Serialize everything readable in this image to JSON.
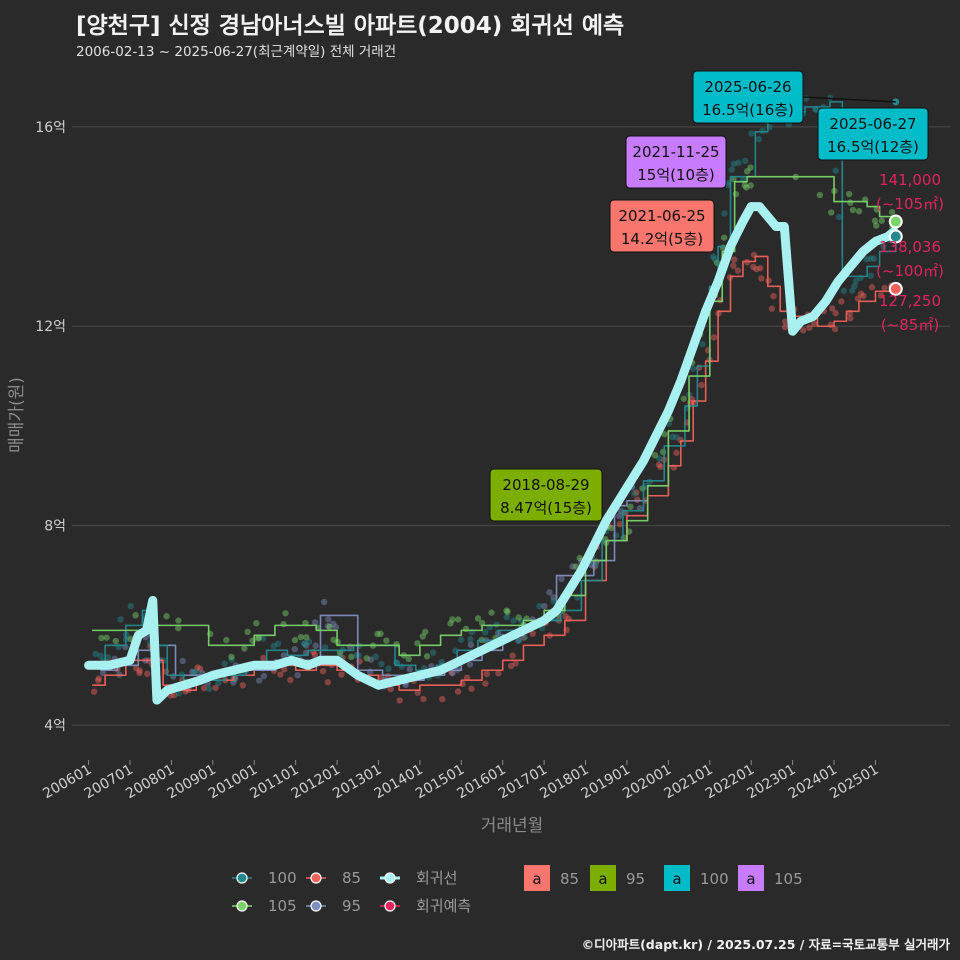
{
  "title": "[양천구] 신정 경남아너스빌 아파트(2004) 회귀선 예측",
  "subtitle": "2006-02-13 ~ 2025-06-27(최근계약일) 전체 거래건",
  "caption": "©디아파트(dapt.kr) / 2025.07.25 / 자료=국토교통부 실거래가",
  "colors": {
    "background": "#2a2a2b",
    "grid": "#4a4a4a",
    "s85": "#f0625a",
    "s95": "#7f8fbf",
    "s100": "#24898f",
    "s105": "#7ad46a",
    "reg": "#a9f0f0",
    "pred": "#e0245e"
  },
  "chart_data": {
    "type": "line",
    "title": "[양천구] 신정 경남아너스빌 아파트(2004) 회귀선 예측",
    "xlabel": "거래년월",
    "ylabel": "매매가(원)",
    "xlim": [
      2005.6,
      2026.8
    ],
    "ylim": [
      3.3,
      17.3
    ],
    "x_ticks": [
      2006,
      2007,
      2008,
      2009,
      2010,
      2011,
      2012,
      2013,
      2014,
      2015,
      2016,
      2017,
      2018,
      2019,
      2020,
      2021,
      2022,
      2023,
      2024,
      2025
    ],
    "x_tick_labels": [
      "200601",
      "200701",
      "200801",
      "200901",
      "201001",
      "201101",
      "201201",
      "201301",
      "201401",
      "201501",
      "201601",
      "201701",
      "201801",
      "201901",
      "202001",
      "202101",
      "202201",
      "202301",
      "202401",
      "202501"
    ],
    "y_ticks": [
      4,
      8,
      12,
      16
    ],
    "y_tick_labels": [
      "4억",
      "8억",
      "12억",
      "16억"
    ],
    "series": [
      {
        "name": "85",
        "color_key": "s85",
        "x": [
          2006.1,
          2006.4,
          2006.9,
          2007.4,
          2007.5,
          2007.8,
          2008.2,
          2008.6,
          2009.0,
          2009.5,
          2010.0,
          2010.5,
          2011.0,
          2011.5,
          2012.0,
          2012.5,
          2013.0,
          2013.5,
          2014.0,
          2014.5,
          2015.0,
          2015.5,
          2016.0,
          2016.5,
          2017.0,
          2017.5,
          2018.0,
          2018.5,
          2019.0,
          2019.5,
          2020.0,
          2020.3,
          2020.6,
          2020.9,
          2021.2,
          2021.5,
          2021.8,
          2022.1,
          2022.4,
          2022.7,
          2023.0,
          2023.3,
          2023.6,
          2024.0,
          2024.3,
          2024.6,
          2025.0,
          2025.4
        ],
        "y": [
          4.8,
          5.0,
          5.3,
          5.3,
          5.3,
          4.8,
          4.7,
          4.9,
          4.9,
          5.0,
          5.1,
          5.2,
          5.1,
          5.2,
          5.1,
          5.0,
          4.8,
          4.7,
          4.8,
          4.8,
          4.9,
          5.1,
          5.3,
          5.6,
          5.8,
          6.1,
          6.9,
          7.7,
          8.2,
          8.6,
          9.2,
          9.7,
          10.5,
          11.3,
          12.3,
          13.0,
          13.3,
          13.4,
          12.8,
          12.3,
          12.2,
          12.2,
          12.0,
          12.1,
          12.3,
          12.5,
          12.7,
          12.75
        ]
      },
      {
        "name": "95",
        "color_key": "s95",
        "x": [
          2006.3,
          2006.7,
          2007.2,
          2007.6,
          2008.1,
          2008.6,
          2009.2,
          2009.8,
          2010.5,
          2011.0,
          2011.3,
          2011.6,
          2011.9,
          2012.5,
          2013.1,
          2013.6,
          2014.1,
          2014.6,
          2015.0,
          2015.5,
          2016.0,
          2016.5,
          2017.0,
          2017.3,
          2017.7,
          2018.2,
          2018.7,
          2019.0,
          2019.5
        ],
        "y": [
          5.1,
          5.2,
          5.5,
          5.6,
          5.0,
          5.0,
          5.1,
          5.1,
          5.3,
          5.3,
          5.3,
          6.2,
          6.2,
          5.1,
          5.0,
          4.9,
          5.0,
          5.1,
          5.3,
          5.5,
          5.8,
          6.0,
          6.2,
          7.0,
          7.0,
          7.3,
          8.4,
          8.5,
          8.5
        ]
      },
      {
        "name": "100",
        "color_key": "s100",
        "x": [
          2006.1,
          2006.4,
          2006.9,
          2007.3,
          2007.6,
          2007.9,
          2008.3,
          2008.8,
          2009.3,
          2009.8,
          2010.3,
          2010.8,
          2011.3,
          2011.9,
          2012.4,
          2012.9,
          2013.4,
          2013.9,
          2014.4,
          2014.9,
          2015.4,
          2015.9,
          2016.4,
          2016.9,
          2017.4,
          2017.9,
          2018.4,
          2018.9,
          2019.4,
          2019.9,
          2020.4,
          2020.7,
          2021.0,
          2021.2,
          2021.5,
          2021.8,
          2022.1,
          2022.4,
          2022.7,
          2023.0,
          2023.3,
          2023.6,
          2023.9,
          2024.2,
          2024.5,
          2024.8,
          2025.1,
          2025.49
        ],
        "y": [
          5.2,
          5.6,
          6.0,
          6.3,
          5.6,
          5.0,
          4.9,
          4.9,
          5.0,
          5.2,
          5.5,
          5.4,
          5.5,
          5.5,
          5.6,
          5.6,
          5.2,
          5.1,
          5.2,
          5.5,
          5.7,
          5.9,
          6.0,
          6.1,
          6.3,
          6.9,
          7.7,
          8.3,
          8.9,
          9.6,
          10.4,
          11.2,
          12.8,
          13.6,
          15.0,
          15.0,
          15.9,
          16.1,
          16.2,
          16.3,
          16.4,
          16.4,
          16.5,
          13.0,
          13.0,
          13.2,
          13.5,
          13.8
        ]
      },
      {
        "name": "105",
        "color_key": "s105",
        "x": [
          2006.1,
          2007.0,
          2007.5,
          2008.9,
          2009.5,
          2010.0,
          2010.5,
          2011.0,
          2011.5,
          2012.0,
          2012.5,
          2013.0,
          2013.5,
          2014.0,
          2014.5,
          2015.0,
          2015.5,
          2016.0,
          2016.5,
          2017.0,
          2017.5,
          2018.0,
          2018.5,
          2019.0,
          2019.5,
          2020.0,
          2020.5,
          2021.0,
          2021.3,
          2021.6,
          2021.9,
          2022.2,
          2024.0,
          2024.4,
          2024.8,
          2025.1,
          2025.49
        ],
        "y": [
          5.9,
          5.9,
          6.0,
          5.6,
          5.6,
          5.8,
          6.0,
          6.0,
          5.9,
          5.6,
          5.6,
          5.6,
          5.4,
          5.6,
          5.8,
          5.9,
          6.0,
          6.0,
          6.1,
          6.3,
          6.6,
          7.3,
          7.7,
          8.1,
          8.8,
          9.9,
          11.0,
          12.5,
          13.5,
          14.9,
          15.0,
          15.0,
          14.5,
          14.5,
          14.4,
          14.2,
          14.1
        ]
      },
      {
        "name": "회귀선",
        "color_key": "reg",
        "x": [
          2006.0,
          2006.5,
          2007.0,
          2007.2,
          2007.4,
          2007.55,
          2007.65,
          2007.9,
          2008.3,
          2008.7,
          2009.0,
          2009.5,
          2010.0,
          2010.5,
          2010.9,
          2011.3,
          2011.6,
          2012.0,
          2012.5,
          2013.0,
          2013.5,
          2014.0,
          2014.5,
          2015.0,
          2015.5,
          2016.0,
          2016.5,
          2017.0,
          2017.3,
          2017.6,
          2017.9,
          2018.2,
          2018.5,
          2018.8,
          2019.1,
          2019.4,
          2019.7,
          2020.0,
          2020.3,
          2020.6,
          2020.9,
          2021.2,
          2021.5,
          2021.8,
          2022.0,
          2022.2,
          2022.6,
          2022.8,
          2023.0,
          2023.2,
          2023.5,
          2023.8,
          2024.1,
          2024.4,
          2024.7,
          2025.0,
          2025.3,
          2025.45
        ],
        "y": [
          5.2,
          5.2,
          5.3,
          5.8,
          5.9,
          6.5,
          4.5,
          4.7,
          4.8,
          4.9,
          5.0,
          5.1,
          5.2,
          5.2,
          5.3,
          5.2,
          5.3,
          5.3,
          5.0,
          4.8,
          4.9,
          5.0,
          5.1,
          5.3,
          5.5,
          5.7,
          5.9,
          6.1,
          6.3,
          6.7,
          7.1,
          7.6,
          8.1,
          8.5,
          8.9,
          9.3,
          9.8,
          10.3,
          10.9,
          11.6,
          12.3,
          12.9,
          13.6,
          14.1,
          14.4,
          14.4,
          14.0,
          14.0,
          11.9,
          12.1,
          12.2,
          12.5,
          12.9,
          13.2,
          13.5,
          13.7,
          13.8,
          13.9
        ]
      }
    ],
    "last_points": [
      {
        "name": "105",
        "x": 2025.49,
        "y": 14.1,
        "color_key": "s105"
      },
      {
        "name": "100",
        "x": 2025.49,
        "y": 13.8,
        "color_key": "s100"
      },
      {
        "name": "85",
        "x": 2025.49,
        "y": 12.75,
        "color_key": "s85"
      }
    ],
    "top_point": {
      "x": 2025.49,
      "y": 16.5
    },
    "annotations": [
      {
        "date": "2025-06-26",
        "price": "16.5억(16층)",
        "color": "#00bcc8",
        "x": 2023.0,
        "y": 16.5
      },
      {
        "date": "2025-06-27",
        "price": "16.5억(12층)",
        "color": "#00bcc8",
        "x": 2025.49,
        "y": 16.5
      },
      {
        "date": "2021-11-25",
        "price": "15억(10층)",
        "color": "#c77cff",
        "x": 2021.9,
        "y": 15.0
      },
      {
        "date": "2021-06-25",
        "price": "14.2억(5층)",
        "color": "#f8766d",
        "x": 2021.5,
        "y": 14.2
      },
      {
        "date": "2018-08-29",
        "price": "8.47억(15층)",
        "color": "#7cae00",
        "x": 2018.66,
        "y": 8.47
      }
    ],
    "predictions": [
      {
        "value": "141,000",
        "area": "(~105㎡)"
      },
      {
        "value": "138,036",
        "area": "(~100㎡)"
      },
      {
        "value": "127,250",
        "area": "(~85㎡)"
      }
    ]
  },
  "legend": {
    "row1": [
      {
        "label": "100",
        "color_key": "s100"
      },
      {
        "label": "85",
        "color_key": "s85"
      },
      {
        "label": "회귀선",
        "color_key": "reg"
      }
    ],
    "row2": [
      {
        "label": "105",
        "color_key": "s105"
      },
      {
        "label": "95",
        "color_key": "s95"
      },
      {
        "label": "회귀예측",
        "color_key": "pred"
      }
    ],
    "fill_glyph": "a",
    "fill": [
      {
        "label": "85",
        "color": "#f8766d"
      },
      {
        "label": "95",
        "color": "#7cae00"
      },
      {
        "label": "100",
        "color": "#00bcc8"
      },
      {
        "label": "105",
        "color": "#c77cff"
      }
    ]
  }
}
